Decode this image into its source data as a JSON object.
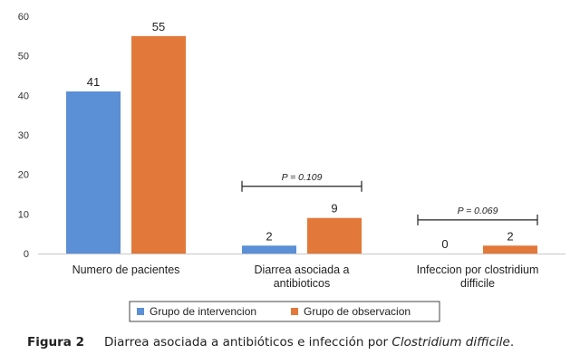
{
  "chart_data": {
    "type": "bar",
    "categories": [
      [
        "Numero de pacientes"
      ],
      [
        "Diarrea asociada a",
        "antibioticos"
      ],
      [
        "Infeccion por clostridium",
        "difficile"
      ]
    ],
    "series": [
      {
        "name": "Grupo de intervencion",
        "color": "#5b8fd6",
        "values": [
          41,
          2,
          0
        ]
      },
      {
        "name": "Grupo de observacion",
        "color": "#e2793a",
        "values": [
          55,
          9,
          2
        ]
      }
    ],
    "ylim": [
      0,
      60
    ],
    "yticks": [
      "0",
      "10",
      "20",
      "30",
      "40",
      "50",
      "60"
    ],
    "annotations": [
      {
        "category_index": 1,
        "text": "P = 0.109",
        "bracket_y": 17
      },
      {
        "category_index": 2,
        "text": "P = 0.069",
        "bracket_y": 8.5
      }
    ],
    "legend": {
      "position": "bottom"
    },
    "grid": false
  },
  "caption": {
    "label": "Figura 2",
    "text_before": "Diarrea asociada a antibióticos e infección por ",
    "text_italic": "Clostridium difficile",
    "text_after": "."
  }
}
